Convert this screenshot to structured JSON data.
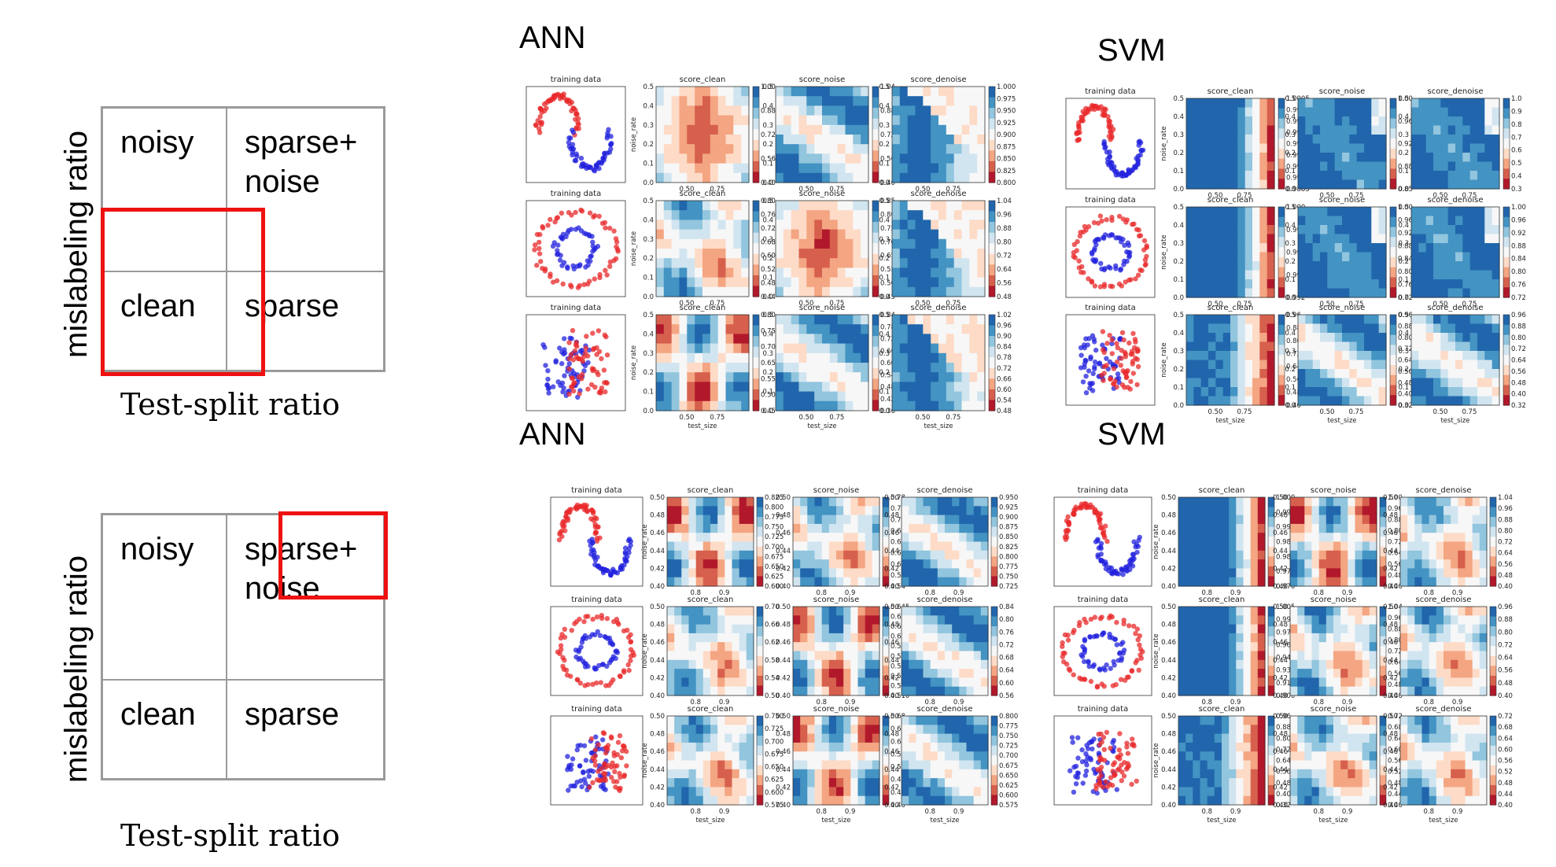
{
  "schematics": [
    {
      "cells": {
        "tl": "noisy",
        "tr": "sparse+\nnoise",
        "bl": "clean",
        "br": "sparse"
      },
      "ylabel": "mislabeling ratio",
      "xlabel": "Test-split ratio",
      "highlight": "clean"
    },
    {
      "cells": {
        "tl": "noisy",
        "tr": "sparse+\nnoise",
        "bl": "clean",
        "br": "sparse"
      },
      "ylabel": "mislabeling ratio",
      "xlabel": "Test-split ratio",
      "highlight": "sparse+noise"
    }
  ],
  "groups": [
    {
      "title": "ANN",
      "model": "ANN",
      "range": "top"
    },
    {
      "title": "SVM",
      "model": "SVM",
      "range": "top"
    },
    {
      "title": "ANN",
      "model": "ANN",
      "range": "bottom"
    },
    {
      "title": "SVM",
      "model": "SVM",
      "range": "bottom"
    }
  ],
  "panel_titles": {
    "training": "training data",
    "clean": "score_clean",
    "noise": "score_noise",
    "denoise": "score_denoise"
  },
  "axis_labels": {
    "x": "test_size",
    "y": "noise_rate"
  },
  "chart_data": {
    "type": "heatmap",
    "datasets": [
      "moons",
      "circles",
      "blobs"
    ],
    "metrics": [
      "score_clean",
      "score_noise",
      "score_denoise"
    ],
    "ranges": {
      "top": {
        "x_ticks": [
          "0.50",
          "0.75"
        ],
        "y_ticks": [
          "0.0",
          "0.1",
          "0.2",
          "0.3",
          "0.4",
          "0.5"
        ]
      },
      "bottom": {
        "x_ticks": [
          "0.8",
          "0.9"
        ],
        "y_ticks": [
          "0.40",
          "0.42",
          "0.44",
          "0.46",
          "0.48",
          "0.50"
        ]
      }
    },
    "colorbars": {
      "ANN_top": [
        [
          "1.00",
          "0.88",
          "0.72",
          "0.56",
          "0.40"
        ],
        [
          "1.04",
          "0.88",
          "0.72",
          "0.56",
          "0.40"
        ],
        [
          "1.000",
          "0.975",
          "0.950",
          "0.925",
          "0.900",
          "0.875",
          "0.850",
          "0.825",
          "0.800"
        ],
        [
          "0.80",
          "0.76",
          "0.72",
          "0.68",
          "0.60",
          "0.52",
          "0.48",
          "0.44"
        ],
        [
          "0.85",
          "0.80",
          "0.75",
          "0.70",
          "0.65",
          "0.55",
          "0.50",
          "0.45"
        ],
        [
          "1.04",
          "0.96",
          "0.88",
          "0.80",
          "0.72",
          "0.64",
          "0.56",
          "0.48"
        ],
        [
          "0.80",
          "0.75",
          "0.70",
          "0.65",
          "0.55",
          "0.50",
          "0.45"
        ],
        [
          "0.84",
          "0.78",
          "0.72",
          "0.66",
          "0.60",
          "0.54",
          "0.48",
          "0.42",
          "0.36"
        ],
        [
          "1.02",
          "0.96",
          "0.90",
          "0.84",
          "0.78",
          "0.72",
          "0.66",
          "0.60",
          "0.54",
          "0.48"
        ]
      ],
      "SVM_top": [
        [
          "1.0005",
          "0.9990",
          "0.9975",
          "0.9960",
          "0.9945",
          "0.9930",
          "0.9915",
          "0.9900",
          "0.9885"
        ],
        [
          "1.00",
          "0.96",
          "0.92",
          "0.88",
          "0.85"
        ],
        [
          "1.0",
          "0.9",
          "0.8",
          "0.7",
          "0.6",
          "0.5",
          "0.4",
          "0.3"
        ],
        [
          "1.000",
          "0.998",
          "0.996",
          "0.994",
          "0.992"
        ],
        [
          "1.00",
          "0.96",
          "0.92",
          "0.88",
          "0.84",
          "0.80",
          "0.76",
          "0.72"
        ],
        [
          "1.00",
          "0.96",
          "0.92",
          "0.88",
          "0.84",
          "0.80",
          "0.76",
          "0.72"
        ],
        [
          "0.96",
          "0.88",
          "0.80",
          "0.72",
          "0.64",
          "0.56",
          "0.48",
          "0.40"
        ],
        [
          "0.96",
          "0.88",
          "0.80",
          "0.72",
          "0.64",
          "0.56",
          "0.48",
          "0.40",
          "0.32"
        ],
        [
          "0.96",
          "0.88",
          "0.80",
          "0.72",
          "0.64",
          "0.56",
          "0.48",
          "0.40",
          "0.32"
        ]
      ],
      "ANN_bottom": [
        [
          "0.825",
          "0.800",
          "0.775",
          "0.750",
          "0.725",
          "0.700",
          "0.675",
          "0.650",
          "0.625",
          "0.600"
        ],
        [
          "0.78",
          "0.75",
          "0.72",
          "0.69",
          "0.66",
          "0.63",
          "0.60",
          "0.57",
          "0.54"
        ],
        [
          "0.950",
          "0.925",
          "0.900",
          "0.875",
          "0.850",
          "0.825",
          "0.800",
          "0.775",
          "0.750",
          "0.725"
        ],
        [
          "0.70",
          "0.66",
          "0.62",
          "0.58",
          "0.54",
          "0.50"
        ],
        [
          "0.645",
          "0.630",
          "0.615",
          "0.600",
          "0.585",
          "0.570",
          "0.555",
          "0.540",
          "0.525",
          "0.510"
        ],
        [
          "0.84",
          "0.80",
          "0.76",
          "0.72",
          "0.68",
          "0.64",
          "0.60",
          "0.56"
        ],
        [
          "0.750",
          "0.725",
          "0.700",
          "0.675",
          "0.650",
          "0.625",
          "0.600",
          "0.575"
        ],
        [
          "0.68",
          "0.64",
          "0.60",
          "0.56",
          "0.52",
          "0.48",
          "0.44",
          "0.40"
        ],
        [
          "0.800",
          "0.775",
          "0.750",
          "0.725",
          "0.700",
          "0.675",
          "0.650",
          "0.625",
          "0.600",
          "0.575"
        ]
      ],
      "SVM_bottom": [
        [
          "1.000",
          "0.995",
          "0.990",
          "0.985",
          "0.980",
          "0.975",
          "0.970"
        ],
        [
          "1.00",
          "0.96",
          "0.88",
          "0.80",
          "0.72",
          "0.64",
          "0.56",
          "0.48",
          "0.40"
        ],
        [
          "1.04",
          "0.96",
          "0.88",
          "0.80",
          "0.72",
          "0.64",
          "0.56",
          "0.48",
          "0.40"
        ],
        [
          "1.005",
          "0.990",
          "0.975",
          "0.960",
          "0.945",
          "0.930",
          "0.915",
          "0.900"
        ],
        [
          "1.04",
          "0.96",
          "0.88",
          "0.80",
          "0.72",
          "0.64",
          "0.56",
          "0.48",
          "0.40"
        ],
        [
          "0.96",
          "0.88",
          "0.80",
          "0.72",
          "0.64",
          "0.56",
          "0.48",
          "0.40"
        ],
        [
          "0.96",
          "0.88",
          "0.80",
          "0.72",
          "0.64",
          "0.56",
          "0.48",
          "0.40",
          "0.32"
        ],
        [
          "0.72",
          "0.68",
          "0.64",
          "0.60",
          "0.56",
          "0.52",
          "0.48",
          "0.44",
          "0.40"
        ],
        [
          "0.72",
          "0.68",
          "0.64",
          "0.60",
          "0.56",
          "0.52",
          "0.48",
          "0.44",
          "0.40"
        ]
      ]
    }
  }
}
